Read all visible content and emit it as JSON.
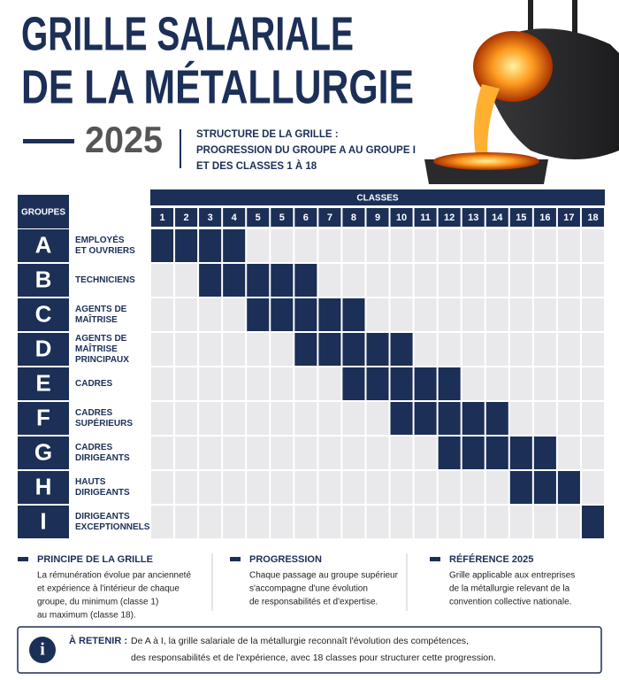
{
  "header": {
    "title_lines": [
      "GRILLE SALARIALE",
      "DE LA MÉTALLURGIE"
    ],
    "year": "2025",
    "subtitle_lines": [
      "STRUCTURE DE LA GRILLE :",
      "PROGRESSION DU GROUPE A AU GROUPE I",
      "ET DES CLASSES 1 À 18"
    ]
  },
  "table": {
    "groups_header": "GROUPES",
    "classes_header": "CLASSES",
    "classes": [
      "1",
      "2",
      "3",
      "4",
      "5",
      "5",
      "6",
      "7",
      "8",
      "9",
      "10",
      "11",
      "12",
      "13",
      "14",
      "15",
      "16",
      "17",
      "18"
    ],
    "groups": [
      {
        "letter": "A",
        "label": [
          "EMPLOYÉS",
          "ET OUVRIERS"
        ],
        "first_column": 0,
        "last_column": 3
      },
      {
        "letter": "B",
        "label": [
          "TECHNICIENS"
        ],
        "first_column": 2,
        "last_column": 6
      },
      {
        "letter": "C",
        "label": [
          "AGENTS DE",
          "MAÎTRISE"
        ],
        "first_column": 4,
        "last_column": 8
      },
      {
        "letter": "D",
        "label": [
          "AGENTS DE",
          "MAÎTRISE",
          "PRINCIPAUX"
        ],
        "first_column": 6,
        "last_column": 10
      },
      {
        "letter": "E",
        "label": [
          "CADRES"
        ],
        "first_column": 8,
        "last_column": 12
      },
      {
        "letter": "F",
        "label": [
          "CADRES",
          "SUPÉRIEURS"
        ],
        "first_column": 10,
        "last_column": 14
      },
      {
        "letter": "G",
        "label": [
          "CADRES",
          "DIRIGEANTS"
        ],
        "first_column": 12,
        "last_column": 16
      },
      {
        "letter": "H",
        "label": [
          "HAUTS",
          "DIRIGEANTS"
        ],
        "first_column": 15,
        "last_column": 17
      },
      {
        "letter": "I",
        "label": [
          "DIRIGEANTS",
          "EXCEPTIONNELS"
        ],
        "first_column": 18,
        "last_column": 18
      }
    ]
  },
  "notes": [
    {
      "title": "PRINCIPE DE LA GRILLE",
      "lines": [
        "La rémunération évolue par ancienneté",
        "et expérience à l'intérieur de chaque",
        "groupe, du minimum (classe 1)",
        "au maximum (classe 18)."
      ]
    },
    {
      "title": "PROGRESSION",
      "lines": [
        "Chaque passage au groupe supérieur",
        "s'accompagne d'une évolution",
        "de responsabilités et d'expertise."
      ]
    },
    {
      "title": "RÉFÉRENCE 2025",
      "lines": [
        "Grille applicable aux entreprises",
        "de la métallurgie relevant de la",
        "convention collective nationale."
      ]
    }
  ],
  "callout": {
    "label": "À RETENIR :",
    "lines": [
      "De A à I, la grille salariale de la métallurgie reconnaît l'évolution des compétences,",
      "des responsabilités et de l'expérience, avec 18 classes pour structurer cette progression."
    ]
  }
}
